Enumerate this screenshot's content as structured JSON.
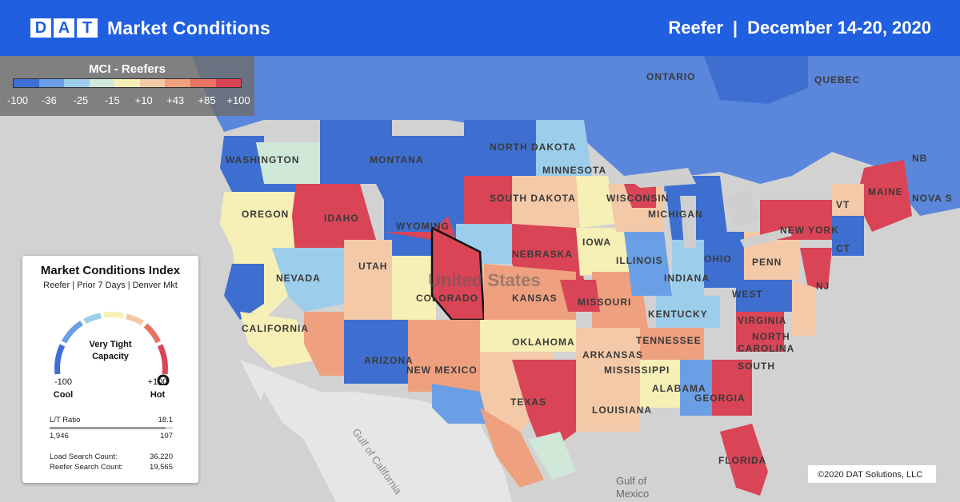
{
  "header": {
    "logo_letters": [
      "D",
      "A",
      "T"
    ],
    "title": "Market Conditions",
    "equipment": "Reefer",
    "separator": "|",
    "date_range": "December 14-20, 2020"
  },
  "legend": {
    "title": "MCI - Reefers",
    "colors": [
      "#3d6fd6",
      "#6a9fe6",
      "#9ccdea",
      "#cfe8d8",
      "#f6efb6",
      "#f3c9a8",
      "#eea07f",
      "#e87360",
      "#d94456"
    ],
    "ticks": [
      "-100",
      "-36",
      "-25",
      "-15",
      "+10",
      "+43",
      "+85",
      "+100"
    ]
  },
  "card": {
    "title": "Market Conditions Index",
    "subtitle": "Reefer | Prior 7 Days | Denver Mkt",
    "status_line1": "Very Tight",
    "status_line2": "Capacity",
    "min_value": "-100",
    "min_label": "Cool",
    "max_value": "+100",
    "max_label": "Hot",
    "lt_label": "L/T Ratio",
    "lt_value": "18.1",
    "loads": "1,946",
    "trucks": "107",
    "lt_bar_fill": 0.94,
    "load_search_label": "Load Search Count:",
    "load_search_value": "36,220",
    "reefer_search_label": "Reefer Search Count:",
    "reefer_search_value": "19,565"
  },
  "map_labels": {
    "states": [
      "WASHINGTON",
      "OREGON",
      "IDAHO",
      "MONTANA",
      "WYOMING",
      "NEVADA",
      "UTAH",
      "COLORADO",
      "CALIFORNIA",
      "ARIZONA",
      "NEW MEXICO",
      "NORTH DAKOTA",
      "SOUTH DAKOTA",
      "NEBRASKA",
      "KANSAS",
      "OKLAHOMA",
      "TEXAS",
      "MINNESOTA",
      "IOWA",
      "MISSOURI",
      "ARKANSAS",
      "LOUISIANA",
      "WISCONSIN",
      "ILLINOIS",
      "MICHIGAN",
      "INDIANA",
      "OHIO",
      "KENTUCKY",
      "TENNESSEE",
      "MISSISSIPPI",
      "ALABAMA",
      "GEORGIA",
      "FLORIDA",
      "SOUTH",
      "CAROLINA",
      "NORTH",
      "WEST",
      "VIRGINIA",
      "PENN",
      "NEW YORK",
      "VT",
      "MAINE",
      "NJ",
      "CT",
      "NB",
      "NOVA S",
      "ONTARIO",
      "QUEBEC"
    ],
    "country": "United States",
    "gulf_ca": "Gulf of California",
    "gulf_mx_1": "Gulf of",
    "gulf_mx_2": "Mexico",
    "copyright": "©2020 DAT Solutions, LLC"
  }
}
